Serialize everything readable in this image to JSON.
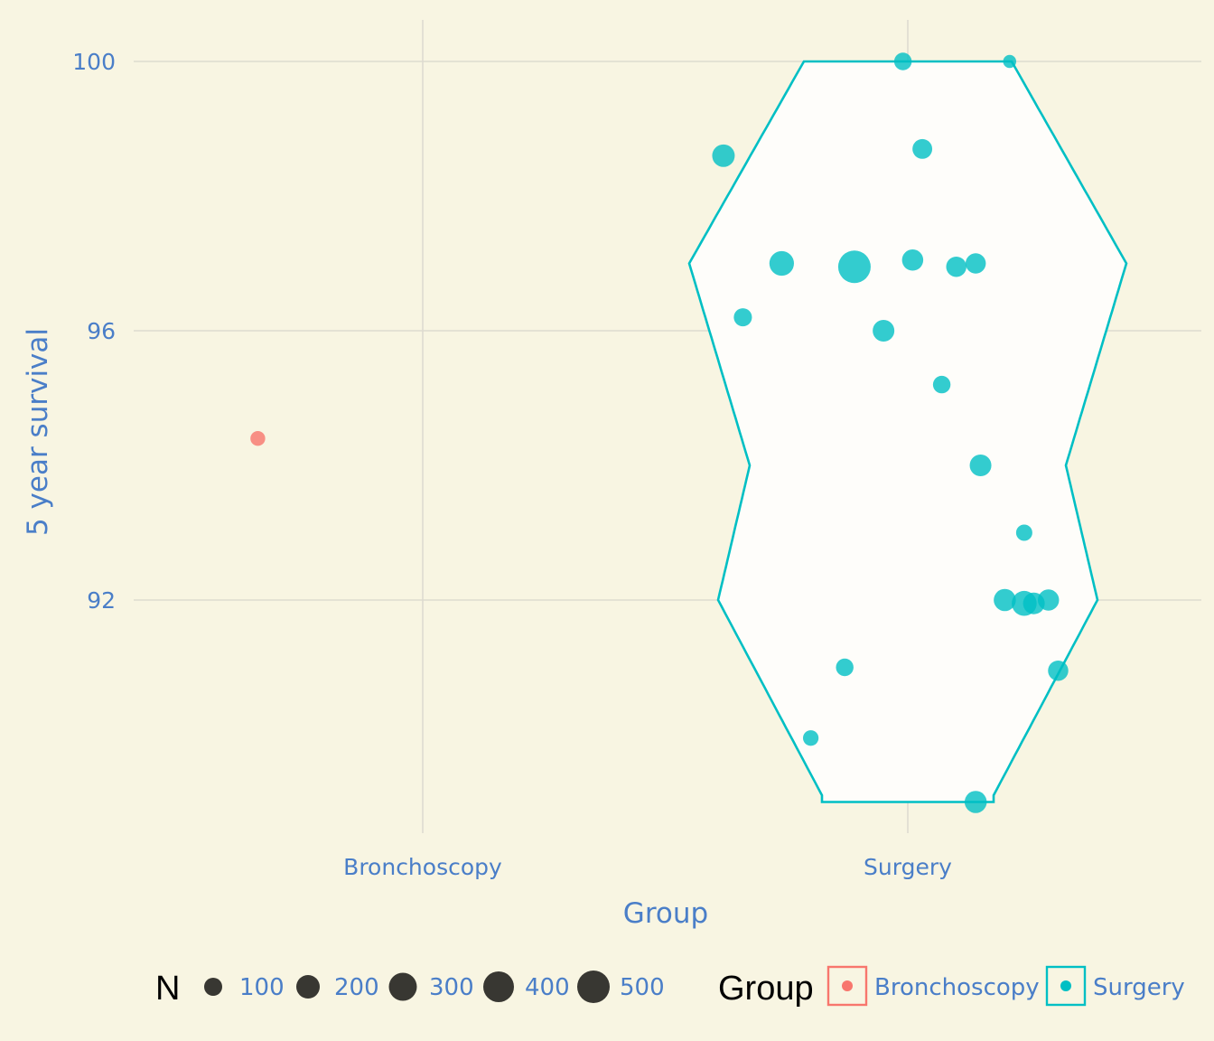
{
  "colors": {
    "background": "#f8f5e2",
    "grid": "#dedbd0",
    "text": "#4a7ec8",
    "bronchoscopy": "#f8766d",
    "surgery": "#00bfc4",
    "size_key": "#2d2c28"
  },
  "chart_data": {
    "type": "scatter",
    "overlay": "violin",
    "xlabel": "Group",
    "ylabel": "5 year survival",
    "categories": [
      "Bronchoscopy",
      "Surgery"
    ],
    "ylim": [
      88.9,
      100.6
    ],
    "yticks": [
      92,
      96,
      100
    ],
    "series": [
      {
        "name": "Bronchoscopy",
        "points": [
          {
            "x": -0.34,
            "y": 94.4,
            "n": 60
          }
        ]
      },
      {
        "name": "Surgery",
        "violin": {
          "ymin": 89,
          "ymax": 100
        },
        "points": [
          {
            "x": -0.01,
            "y": 100.0,
            "n": 100
          },
          {
            "x": 0.21,
            "y": 100.0,
            "n": 40
          },
          {
            "x": -0.38,
            "y": 98.6,
            "n": 200
          },
          {
            "x": 0.03,
            "y": 98.7,
            "n": 140
          },
          {
            "x": -0.26,
            "y": 97.0,
            "n": 250
          },
          {
            "x": -0.11,
            "y": 96.95,
            "n": 500
          },
          {
            "x": 0.01,
            "y": 97.05,
            "n": 170
          },
          {
            "x": 0.1,
            "y": 96.95,
            "n": 150
          },
          {
            "x": 0.14,
            "y": 97.0,
            "n": 150
          },
          {
            "x": -0.34,
            "y": 96.2,
            "n": 110
          },
          {
            "x": -0.05,
            "y": 96.0,
            "n": 180
          },
          {
            "x": 0.07,
            "y": 95.2,
            "n": 100
          },
          {
            "x": 0.15,
            "y": 94.0,
            "n": 180
          },
          {
            "x": 0.24,
            "y": 93.0,
            "n": 80
          },
          {
            "x": 0.2,
            "y": 92.0,
            "n": 190
          },
          {
            "x": 0.24,
            "y": 91.95,
            "n": 260
          },
          {
            "x": 0.26,
            "y": 91.95,
            "n": 180
          },
          {
            "x": 0.29,
            "y": 92.0,
            "n": 170
          },
          {
            "x": -0.13,
            "y": 91.0,
            "n": 100
          },
          {
            "x": 0.31,
            "y": 90.95,
            "n": 150
          },
          {
            "x": -0.2,
            "y": 89.95,
            "n": 70
          },
          {
            "x": 0.14,
            "y": 89.0,
            "n": 190
          }
        ]
      }
    ],
    "legends": {
      "size": {
        "title": "N",
        "values": [
          100,
          200,
          300,
          400,
          500
        ]
      },
      "color": {
        "title": "Group",
        "entries": [
          "Bronchoscopy",
          "Surgery"
        ]
      }
    }
  }
}
